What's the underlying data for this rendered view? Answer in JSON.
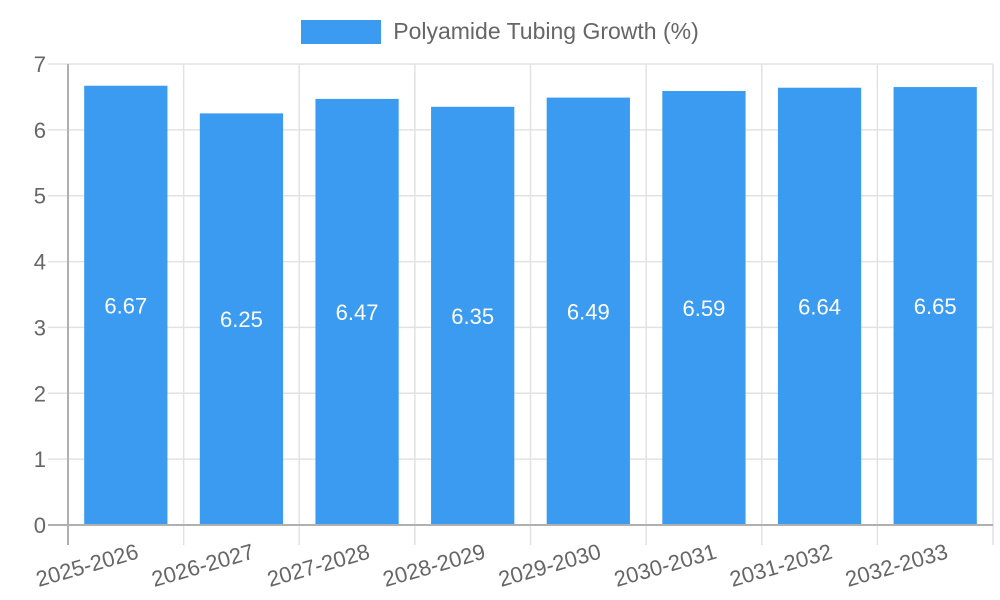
{
  "legend": {
    "label": "Polyamide Tubing Growth (%)",
    "color": "#3a9bf0"
  },
  "colors": {
    "bar": "#3a9bf0",
    "grid": "#e2e2e2",
    "axis": "#b0b0b0",
    "tick_text": "#666666",
    "data_label": "#ffffff"
  },
  "chart_data": {
    "type": "bar",
    "title": "",
    "xlabel": "",
    "ylabel": "",
    "ylim": [
      0,
      7
    ],
    "yticks": [
      0,
      1,
      2,
      3,
      4,
      5,
      6,
      7
    ],
    "grid": true,
    "legend_position": "top",
    "categories": [
      "2025-2026",
      "2026-2027",
      "2027-2028",
      "2028-2029",
      "2029-2030",
      "2030-2031",
      "2031-2032",
      "2032-2033"
    ],
    "series": [
      {
        "name": "Polyamide Tubing Growth (%)",
        "values": [
          6.67,
          6.25,
          6.47,
          6.35,
          6.49,
          6.59,
          6.64,
          6.65
        ],
        "data_labels": [
          "6.67",
          "6.25",
          "6.47",
          "6.35",
          "6.49",
          "6.59",
          "6.64",
          "6.65"
        ]
      }
    ]
  }
}
